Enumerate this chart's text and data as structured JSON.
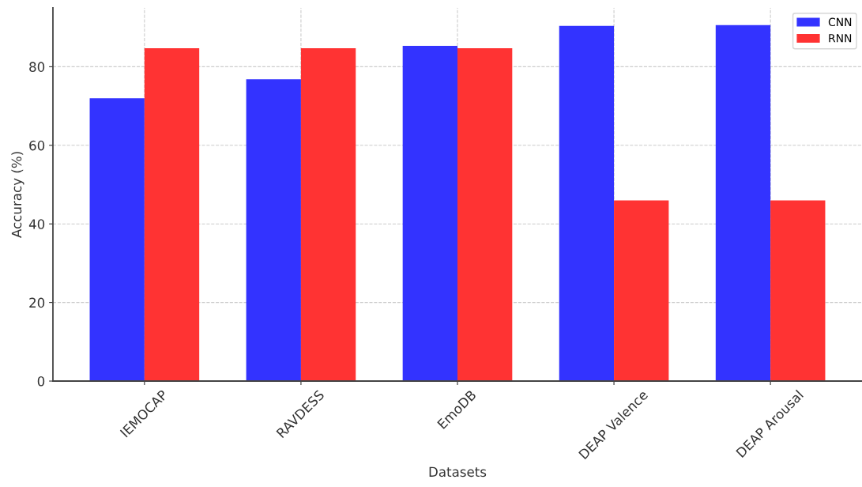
{
  "chart_data": {
    "type": "bar",
    "xlabel": "Datasets",
    "ylabel": "Accuracy (%)",
    "categories": [
      "IEMOCAP",
      "RAVDESS",
      "EmoDB",
      "DEAP Valence",
      "DEAP Arousal"
    ],
    "series": [
      {
        "name": "CNN",
        "color": "#3333ff",
        "values": [
          72.0,
          76.8,
          85.3,
          90.4,
          90.6
        ]
      },
      {
        "name": "RNN",
        "color": "#ff3333",
        "values": [
          84.7,
          84.7,
          84.7,
          46.0,
          46.0
        ]
      }
    ],
    "ylim": [
      0,
      95
    ],
    "yticks": [
      0,
      20,
      40,
      60,
      80
    ],
    "grid": true,
    "legend": "top right"
  }
}
